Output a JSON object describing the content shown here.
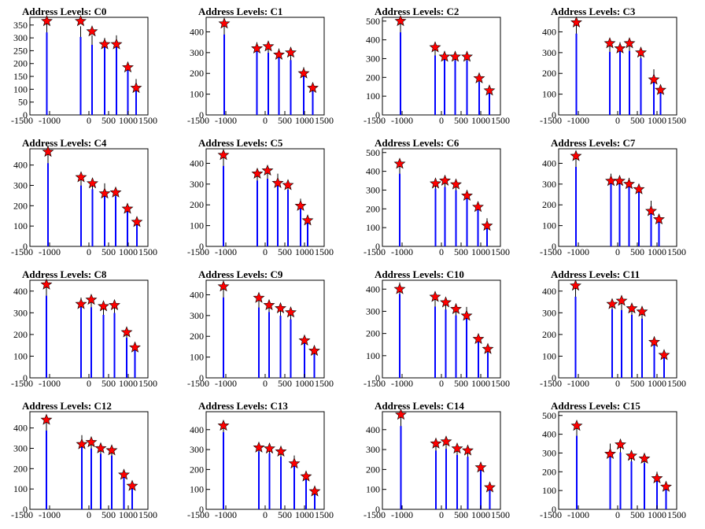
{
  "chart_data": [
    {
      "type": "bar",
      "title": "Address Levels: C0",
      "xlim": [
        -1500,
        1500
      ],
      "ylim": [
        0,
        380
      ],
      "yticks": [
        0,
        50,
        100,
        150,
        200,
        250,
        300,
        350
      ],
      "markers": [
        {
          "x": -1070,
          "y": 365
        },
        {
          "x": -210,
          "y": 365
        },
        {
          "x": 80,
          "y": 325
        },
        {
          "x": 400,
          "y": 275
        },
        {
          "x": 700,
          "y": 275
        },
        {
          "x": 990,
          "y": 185
        },
        {
          "x": 1200,
          "y": 105
        }
      ],
      "bars": [
        {
          "x": -1070,
          "y": 365
        },
        {
          "x": -210,
          "y": 345
        },
        {
          "x": 80,
          "y": 310
        },
        {
          "x": 400,
          "y": 300
        },
        {
          "x": 700,
          "y": 310
        },
        {
          "x": 990,
          "y": 200
        },
        {
          "x": 1200,
          "y": 140
        }
      ]
    },
    {
      "type": "bar",
      "title": "Address Levels: C1",
      "xlim": [
        -1500,
        1500
      ],
      "ylim": [
        0,
        470
      ],
      "yticks": [
        0,
        100,
        200,
        300,
        400
      ],
      "markers": [
        {
          "x": -1040,
          "y": 440
        },
        {
          "x": -210,
          "y": 320
        },
        {
          "x": 80,
          "y": 330
        },
        {
          "x": 350,
          "y": 290
        },
        {
          "x": 650,
          "y": 300
        },
        {
          "x": 980,
          "y": 200
        },
        {
          "x": 1210,
          "y": 130
        }
      ],
      "bars": [
        {
          "x": -1040,
          "y": 440
        },
        {
          "x": -210,
          "y": 350
        },
        {
          "x": 80,
          "y": 340
        },
        {
          "x": 350,
          "y": 320
        },
        {
          "x": 650,
          "y": 300
        },
        {
          "x": 980,
          "y": 230
        },
        {
          "x": 1210,
          "y": 130
        }
      ]
    },
    {
      "type": "bar",
      "title": "Address Levels: C2",
      "xlim": [
        -1500,
        1500
      ],
      "ylim": [
        0,
        520
      ],
      "yticks": [
        0,
        100,
        200,
        300,
        400,
        500
      ],
      "markers": [
        {
          "x": -1040,
          "y": 500
        },
        {
          "x": -160,
          "y": 360
        },
        {
          "x": 80,
          "y": 310
        },
        {
          "x": 350,
          "y": 310
        },
        {
          "x": 650,
          "y": 310
        },
        {
          "x": 960,
          "y": 195
        },
        {
          "x": 1220,
          "y": 130
        }
      ],
      "bars": [
        {
          "x": -1040,
          "y": 500
        },
        {
          "x": -160,
          "y": 360
        },
        {
          "x": 80,
          "y": 340
        },
        {
          "x": 350,
          "y": 330
        },
        {
          "x": 650,
          "y": 330
        },
        {
          "x": 960,
          "y": 200
        },
        {
          "x": 1220,
          "y": 130
        }
      ]
    },
    {
      "type": "bar",
      "title": "Address Levels: C3",
      "xlim": [
        -1500,
        1500
      ],
      "ylim": [
        0,
        470
      ],
      "yticks": [
        0,
        100,
        200,
        300,
        400
      ],
      "markers": [
        {
          "x": -1050,
          "y": 445
        },
        {
          "x": -200,
          "y": 345
        },
        {
          "x": 60,
          "y": 320
        },
        {
          "x": 300,
          "y": 345
        },
        {
          "x": 590,
          "y": 300
        },
        {
          "x": 920,
          "y": 170
        },
        {
          "x": 1090,
          "y": 120
        }
      ],
      "bars": [
        {
          "x": -1050,
          "y": 445
        },
        {
          "x": -200,
          "y": 345
        },
        {
          "x": 60,
          "y": 350
        },
        {
          "x": 300,
          "y": 350
        },
        {
          "x": 590,
          "y": 310
        },
        {
          "x": 920,
          "y": 220
        },
        {
          "x": 1090,
          "y": 130
        }
      ]
    },
    {
      "type": "bar",
      "title": "Address Levels: C4",
      "xlim": [
        -1500,
        1500
      ],
      "ylim": [
        0,
        480
      ],
      "yticks": [
        0,
        100,
        200,
        300,
        400
      ],
      "markers": [
        {
          "x": -1040,
          "y": 465
        },
        {
          "x": -200,
          "y": 340
        },
        {
          "x": 90,
          "y": 310
        },
        {
          "x": 400,
          "y": 260
        },
        {
          "x": 680,
          "y": 265
        },
        {
          "x": 980,
          "y": 185
        },
        {
          "x": 1220,
          "y": 120
        }
      ],
      "bars": [
        {
          "x": -1040,
          "y": 465
        },
        {
          "x": -200,
          "y": 340
        },
        {
          "x": 90,
          "y": 320
        },
        {
          "x": 400,
          "y": 310
        },
        {
          "x": 680,
          "y": 280
        },
        {
          "x": 980,
          "y": 200
        },
        {
          "x": 1220,
          "y": 130
        }
      ]
    },
    {
      "type": "bar",
      "title": "Address Levels: C5",
      "xlim": [
        -1500,
        1500
      ],
      "ylim": [
        0,
        470
      ],
      "yticks": [
        0,
        100,
        200,
        300,
        400
      ],
      "markers": [
        {
          "x": -1060,
          "y": 440
        },
        {
          "x": -200,
          "y": 350
        },
        {
          "x": 60,
          "y": 365
        },
        {
          "x": 320,
          "y": 305
        },
        {
          "x": 580,
          "y": 295
        },
        {
          "x": 900,
          "y": 195
        },
        {
          "x": 1080,
          "y": 125
        }
      ],
      "bars": [
        {
          "x": -1060,
          "y": 440
        },
        {
          "x": -200,
          "y": 360
        },
        {
          "x": 60,
          "y": 370
        },
        {
          "x": 320,
          "y": 350
        },
        {
          "x": 580,
          "y": 310
        },
        {
          "x": 900,
          "y": 230
        },
        {
          "x": 1080,
          "y": 150
        }
      ]
    },
    {
      "type": "bar",
      "title": "Address Levels: C6",
      "xlim": [
        -1500,
        1500
      ],
      "ylim": [
        0,
        520
      ],
      "yticks": [
        0,
        100,
        200,
        300,
        400,
        500
      ],
      "markers": [
        {
          "x": -1060,
          "y": 440
        },
        {
          "x": -150,
          "y": 335
        },
        {
          "x": 90,
          "y": 350
        },
        {
          "x": 370,
          "y": 330
        },
        {
          "x": 650,
          "y": 270
        },
        {
          "x": 930,
          "y": 210
        },
        {
          "x": 1160,
          "y": 110
        }
      ],
      "bars": [
        {
          "x": -1060,
          "y": 440
        },
        {
          "x": -150,
          "y": 350
        },
        {
          "x": 90,
          "y": 360
        },
        {
          "x": 370,
          "y": 340
        },
        {
          "x": 650,
          "y": 300
        },
        {
          "x": 930,
          "y": 230
        },
        {
          "x": 1160,
          "y": 150
        }
      ]
    },
    {
      "type": "bar",
      "title": "Address Levels: C7",
      "xlim": [
        -1500,
        1500
      ],
      "ylim": [
        0,
        470
      ],
      "yticks": [
        0,
        100,
        200,
        300,
        400
      ],
      "markers": [
        {
          "x": -1060,
          "y": 435
        },
        {
          "x": -170,
          "y": 315
        },
        {
          "x": 50,
          "y": 315
        },
        {
          "x": 290,
          "y": 300
        },
        {
          "x": 540,
          "y": 275
        },
        {
          "x": 850,
          "y": 170
        },
        {
          "x": 1050,
          "y": 130
        }
      ],
      "bars": [
        {
          "x": -1060,
          "y": 435
        },
        {
          "x": -170,
          "y": 350
        },
        {
          "x": 50,
          "y": 340
        },
        {
          "x": 290,
          "y": 330
        },
        {
          "x": 540,
          "y": 300
        },
        {
          "x": 850,
          "y": 220
        },
        {
          "x": 1050,
          "y": 140
        }
      ]
    },
    {
      "type": "bar",
      "title": "Address Levels: C8",
      "xlim": [
        -1500,
        1500
      ],
      "ylim": [
        0,
        450
      ],
      "yticks": [
        0,
        100,
        200,
        300,
        400
      ],
      "markers": [
        {
          "x": -1080,
          "y": 430
        },
        {
          "x": -200,
          "y": 340
        },
        {
          "x": 60,
          "y": 360
        },
        {
          "x": 370,
          "y": 330
        },
        {
          "x": 650,
          "y": 335
        },
        {
          "x": 960,
          "y": 210
        },
        {
          "x": 1170,
          "y": 140
        }
      ],
      "bars": [
        {
          "x": -1080,
          "y": 430
        },
        {
          "x": -200,
          "y": 370
        },
        {
          "x": 60,
          "y": 370
        },
        {
          "x": 370,
          "y": 330
        },
        {
          "x": 650,
          "y": 340
        },
        {
          "x": 960,
          "y": 210
        },
        {
          "x": 1170,
          "y": 150
        }
      ]
    },
    {
      "type": "bar",
      "title": "Address Levels: C9",
      "xlim": [
        -1500,
        1500
      ],
      "ylim": [
        0,
        470
      ],
      "yticks": [
        0,
        100,
        200,
        300,
        400
      ],
      "markers": [
        {
          "x": -1060,
          "y": 440
        },
        {
          "x": -160,
          "y": 385
        },
        {
          "x": 100,
          "y": 350
        },
        {
          "x": 390,
          "y": 335
        },
        {
          "x": 650,
          "y": 315
        },
        {
          "x": 1000,
          "y": 180
        },
        {
          "x": 1250,
          "y": 130
        }
      ],
      "bars": [
        {
          "x": -1060,
          "y": 440
        },
        {
          "x": -160,
          "y": 385
        },
        {
          "x": 100,
          "y": 360
        },
        {
          "x": 390,
          "y": 340
        },
        {
          "x": 650,
          "y": 320
        },
        {
          "x": 1000,
          "y": 200
        },
        {
          "x": 1250,
          "y": 130
        }
      ]
    },
    {
      "type": "bar",
      "title": "Address Levels: C10",
      "xlim": [
        -1500,
        1500
      ],
      "ylim": [
        0,
        440
      ],
      "yticks": [
        0,
        100,
        200,
        300,
        400
      ],
      "markers": [
        {
          "x": -1060,
          "y": 400
        },
        {
          "x": -160,
          "y": 365
        },
        {
          "x": 110,
          "y": 340
        },
        {
          "x": 370,
          "y": 310
        },
        {
          "x": 640,
          "y": 280
        },
        {
          "x": 940,
          "y": 175
        },
        {
          "x": 1180,
          "y": 130
        }
      ],
      "bars": [
        {
          "x": -1060,
          "y": 430
        },
        {
          "x": -160,
          "y": 365
        },
        {
          "x": 110,
          "y": 350
        },
        {
          "x": 370,
          "y": 320
        },
        {
          "x": 640,
          "y": 320
        },
        {
          "x": 940,
          "y": 190
        },
        {
          "x": 1180,
          "y": 130
        }
      ]
    },
    {
      "type": "bar",
      "title": "Address Levels: C11",
      "xlim": [
        -1500,
        1500
      ],
      "ylim": [
        0,
        450
      ],
      "yticks": [
        0,
        100,
        200,
        300,
        400
      ],
      "markers": [
        {
          "x": -1070,
          "y": 425
        },
        {
          "x": -140,
          "y": 340
        },
        {
          "x": 100,
          "y": 355
        },
        {
          "x": 360,
          "y": 320
        },
        {
          "x": 620,
          "y": 305
        },
        {
          "x": 930,
          "y": 165
        },
        {
          "x": 1180,
          "y": 105
        }
      ],
      "bars": [
        {
          "x": -1070,
          "y": 425
        },
        {
          "x": -140,
          "y": 360
        },
        {
          "x": 100,
          "y": 355
        },
        {
          "x": 360,
          "y": 330
        },
        {
          "x": 620,
          "y": 310
        },
        {
          "x": 930,
          "y": 190
        },
        {
          "x": 1180,
          "y": 110
        }
      ]
    },
    {
      "type": "bar",
      "title": "Address Levels: C12",
      "xlim": [
        -1500,
        1500
      ],
      "ylim": [
        0,
        480
      ],
      "yticks": [
        0,
        100,
        200,
        300,
        400
      ],
      "markers": [
        {
          "x": -1080,
          "y": 440
        },
        {
          "x": -180,
          "y": 320
        },
        {
          "x": 60,
          "y": 330
        },
        {
          "x": 300,
          "y": 300
        },
        {
          "x": 580,
          "y": 290
        },
        {
          "x": 890,
          "y": 170
        },
        {
          "x": 1100,
          "y": 115
        }
      ],
      "bars": [
        {
          "x": -1080,
          "y": 440
        },
        {
          "x": -180,
          "y": 365
        },
        {
          "x": 60,
          "y": 340
        },
        {
          "x": 300,
          "y": 310
        },
        {
          "x": 580,
          "y": 300
        },
        {
          "x": 890,
          "y": 180
        },
        {
          "x": 1100,
          "y": 120
        }
      ]
    },
    {
      "type": "bar",
      "title": "Address Levels: C13",
      "xlim": [
        -1500,
        1500
      ],
      "ylim": [
        0,
        490
      ],
      "yticks": [
        0,
        100,
        200,
        300,
        400
      ],
      "markers": [
        {
          "x": -1060,
          "y": 420
        },
        {
          "x": -160,
          "y": 310
        },
        {
          "x": 110,
          "y": 305
        },
        {
          "x": 400,
          "y": 290
        },
        {
          "x": 740,
          "y": 230
        },
        {
          "x": 1040,
          "y": 165
        },
        {
          "x": 1260,
          "y": 90
        }
      ],
      "bars": [
        {
          "x": -1060,
          "y": 440
        },
        {
          "x": -160,
          "y": 330
        },
        {
          "x": 110,
          "y": 320
        },
        {
          "x": 400,
          "y": 300
        },
        {
          "x": 740,
          "y": 270
        },
        {
          "x": 1040,
          "y": 170
        },
        {
          "x": 1260,
          "y": 100
        }
      ]
    },
    {
      "type": "bar",
      "title": "Address Levels: C14",
      "xlim": [
        -1500,
        1500
      ],
      "ylim": [
        0,
        490
      ],
      "yticks": [
        0,
        100,
        200,
        300,
        400
      ],
      "markers": [
        {
          "x": -1030,
          "y": 475
        },
        {
          "x": -140,
          "y": 330
        },
        {
          "x": 120,
          "y": 340
        },
        {
          "x": 400,
          "y": 305
        },
        {
          "x": 670,
          "y": 295
        },
        {
          "x": 1000,
          "y": 210
        },
        {
          "x": 1230,
          "y": 110
        }
      ],
      "bars": [
        {
          "x": -1030,
          "y": 475
        },
        {
          "x": -140,
          "y": 335
        },
        {
          "x": 120,
          "y": 345
        },
        {
          "x": 400,
          "y": 310
        },
        {
          "x": 670,
          "y": 300
        },
        {
          "x": 1000,
          "y": 230
        },
        {
          "x": 1230,
          "y": 120
        }
      ]
    },
    {
      "type": "bar",
      "title": "Address Levels: C15",
      "xlim": [
        -1500,
        1500
      ],
      "ylim": [
        0,
        520
      ],
      "yticks": [
        0,
        100,
        200,
        300,
        400,
        500
      ],
      "markers": [
        {
          "x": -1040,
          "y": 445
        },
        {
          "x": -190,
          "y": 295
        },
        {
          "x": 70,
          "y": 345
        },
        {
          "x": 350,
          "y": 285
        },
        {
          "x": 680,
          "y": 270
        },
        {
          "x": 1000,
          "y": 165
        },
        {
          "x": 1230,
          "y": 120
        }
      ],
      "bars": [
        {
          "x": -1040,
          "y": 445
        },
        {
          "x": -190,
          "y": 350
        },
        {
          "x": 70,
          "y": 345
        },
        {
          "x": 350,
          "y": 290
        },
        {
          "x": 680,
          "y": 280
        },
        {
          "x": 1000,
          "y": 200
        },
        {
          "x": 1230,
          "y": 120
        }
      ]
    }
  ],
  "style": {
    "bar_color": "#0000ff",
    "marker_color": "#ff0000",
    "marker_stroke": "#000000"
  },
  "xticks": [
    -1500,
    -1000,
    0,
    500,
    1000,
    1500
  ],
  "xtick_labels": [
    "-1500",
    "-1000",
    "0",
    "500",
    "1000",
    "1500"
  ]
}
